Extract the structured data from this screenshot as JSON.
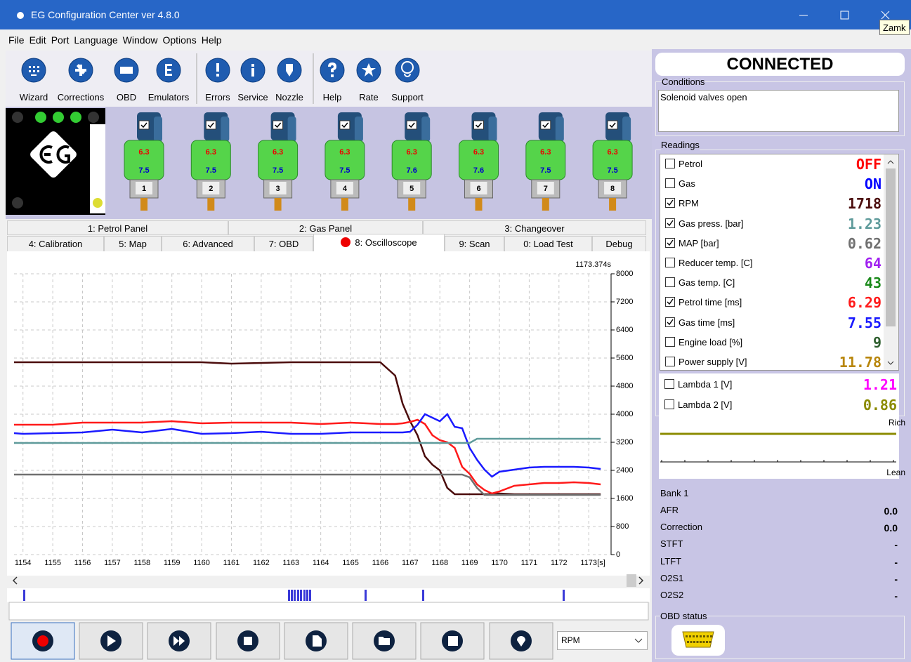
{
  "window": {
    "title": "EG Configuration Center ver 4.8.0",
    "tooltip": "Zamk"
  },
  "menu": [
    "File",
    "Edit",
    "Port",
    "Language",
    "Window",
    "Options",
    "Help"
  ],
  "toolbar": [
    "Wizard",
    "Corrections",
    "OBD",
    "Emulators",
    "Errors",
    "Service",
    "Nozzle",
    "Help",
    "Rate",
    "Support"
  ],
  "injectors": [
    {
      "petrol": "6.3",
      "gas": "7.5",
      "number": "1"
    },
    {
      "petrol": "6.3",
      "gas": "7.5",
      "number": "2"
    },
    {
      "petrol": "6.3",
      "gas": "7.5",
      "number": "3"
    },
    {
      "petrol": "6.3",
      "gas": "7.5",
      "number": "4"
    },
    {
      "petrol": "6.3",
      "gas": "7.6",
      "number": "5"
    },
    {
      "petrol": "6.3",
      "gas": "7.6",
      "number": "6"
    },
    {
      "petrol": "6.3",
      "gas": "7.5",
      "number": "7"
    },
    {
      "petrol": "6.3",
      "gas": "7.5",
      "number": "8"
    }
  ],
  "tabs": {
    "row1": [
      "1: Petrol Panel",
      "2: Gas Panel",
      "3: Changeover"
    ],
    "row2": [
      "4: Calibration",
      "5: Map",
      "6: Advanced",
      "7: OBD",
      "8: Oscilloscope",
      "9: Scan",
      "0: Load Test",
      "Debug"
    ],
    "selected": "8: Oscilloscope"
  },
  "oscilloscope": {
    "time_label": "1173.374s",
    "x_unit": "[s]",
    "x": [
      1153.7,
      1154,
      1155,
      1156,
      1157,
      1158,
      1159,
      1160,
      1161,
      1162,
      1163,
      1164,
      1165,
      1166,
      1166.5,
      1166.75,
      1167,
      1167.25,
      1167.5,
      1167.75,
      1168,
      1168.25,
      1168.5,
      1168.75,
      1169,
      1169.25,
      1169.5,
      1169.75,
      1170,
      1170.5,
      1171,
      1171.5,
      1172,
      1172.5,
      1173,
      1173.4
    ],
    "xlim": [
      1153.7,
      1173.75
    ],
    "xticks": [
      1154,
      1155,
      1156,
      1157,
      1158,
      1159,
      1160,
      1161,
      1162,
      1163,
      1164,
      1165,
      1166,
      1167,
      1168,
      1169,
      1170,
      1171,
      1172,
      1173
    ],
    "ylim": [
      0,
      8000
    ],
    "yticks": [
      0,
      800,
      1600,
      2400,
      3200,
      4000,
      4800,
      5600,
      6400,
      7200,
      8000
    ],
    "grid": true,
    "series": [
      {
        "color": "#4b0c0c",
        "values": [
          5480,
          5480,
          5480,
          5480,
          5480,
          5480,
          5480,
          5480,
          5440,
          5460,
          5480,
          5480,
          5480,
          5480,
          5100,
          4300,
          3800,
          3400,
          2800,
          2560,
          2400,
          1900,
          1720,
          1720,
          1720,
          1720,
          1720,
          1720,
          1740,
          1720,
          1720,
          1720,
          1720,
          1720,
          1720,
          1720
        ]
      },
      {
        "color": "#ff1a1a",
        "values": [
          3700,
          3700,
          3700,
          3760,
          3760,
          3760,
          3800,
          3740,
          3760,
          3760,
          3760,
          3720,
          3760,
          3720,
          3720,
          3740,
          3780,
          3840,
          3720,
          3400,
          3260,
          3200,
          3040,
          2500,
          2300,
          2000,
          1840,
          1740,
          1800,
          1960,
          2000,
          2040,
          2040,
          2060,
          2040,
          2000
        ]
      },
      {
        "color": "#1a1aff",
        "values": [
          3460,
          3440,
          3460,
          3480,
          3560,
          3480,
          3580,
          3440,
          3460,
          3500,
          3440,
          3440,
          3480,
          3480,
          3480,
          3480,
          3500,
          3700,
          4000,
          3900,
          3800,
          4000,
          3640,
          3600,
          3040,
          2700,
          2420,
          2220,
          2360,
          2420,
          2480,
          2500,
          2500,
          2500,
          2480,
          2440
        ]
      },
      {
        "color": "#5f9b9b",
        "values": [
          3180,
          3180,
          3180,
          3180,
          3180,
          3180,
          3180,
          3180,
          3180,
          3180,
          3180,
          3180,
          3180,
          3180,
          3180,
          3180,
          3180,
          3180,
          3180,
          3180,
          3180,
          3180,
          3180,
          3180,
          3180,
          3300,
          3300,
          3300,
          3300,
          3300,
          3300,
          3300,
          3300,
          3300,
          3300,
          3300
        ]
      },
      {
        "color": "#707070",
        "values": [
          2280,
          2280,
          2280,
          2280,
          2280,
          2280,
          2280,
          2280,
          2280,
          2280,
          2280,
          2280,
          2280,
          2280,
          2280,
          2280,
          2280,
          2280,
          2280,
          2280,
          2280,
          2280,
          2280,
          2280,
          2200,
          1900,
          1700,
          1700,
          1700,
          1700,
          1700,
          1700,
          1700,
          1700,
          1700,
          1700
        ]
      }
    ]
  },
  "channel_select": "RPM",
  "status": {
    "connection": "CONNECTED",
    "conditions_title": "Conditions",
    "conditions": "Solenoid valves open"
  },
  "readings": {
    "title": "Readings",
    "items": [
      {
        "label": "Petrol",
        "value": "OFF",
        "color": "#ff0000",
        "checked": false
      },
      {
        "label": "Gas",
        "value": "ON",
        "color": "#0000ff",
        "checked": false
      },
      {
        "label": "RPM",
        "value": "1718",
        "color": "#4b0c0c",
        "checked": true
      },
      {
        "label": "Gas press. [bar]",
        "value": "1.23",
        "color": "#5f9b9b",
        "checked": true
      },
      {
        "label": "MAP [bar]",
        "value": "0.62",
        "color": "#707070",
        "checked": true
      },
      {
        "label": "Reducer temp. [C]",
        "value": "64",
        "color": "#a020f0",
        "checked": false
      },
      {
        "label": "Gas temp. [C]",
        "value": "43",
        "color": "#1a8a1a",
        "checked": false
      },
      {
        "label": "Petrol time [ms]",
        "value": "6.29",
        "color": "#ff1a1a",
        "checked": true
      },
      {
        "label": "Gas time [ms]",
        "value": "7.55",
        "color": "#1a1aff",
        "checked": true
      },
      {
        "label": "Engine load [%]",
        "value": "9",
        "color": "#2f5f2f",
        "checked": false
      },
      {
        "label": "Power supply [V]",
        "value": "11.78",
        "color": "#b8860b",
        "checked": false
      },
      {
        "label": "Lambda 1 [V]",
        "value": "1.21",
        "color": "#ff00ff",
        "checked": false
      },
      {
        "label": "Lambda 2 [V]",
        "value": "0.86",
        "color": "#8b8b00",
        "checked": false
      }
    ]
  },
  "lambda": {
    "rich": "Rich",
    "lean": "Lean"
  },
  "bank": {
    "title": "Bank 1",
    "rows": [
      {
        "label": "AFR",
        "value": "0.0"
      },
      {
        "label": "Correction",
        "value": "0.0"
      },
      {
        "label": "STFT",
        "value": "-"
      },
      {
        "label": "LTFT",
        "value": "-"
      },
      {
        "label": "O2S1",
        "value": "-"
      },
      {
        "label": "O2S2",
        "value": "-"
      }
    ]
  },
  "obd_status": "OBD status"
}
